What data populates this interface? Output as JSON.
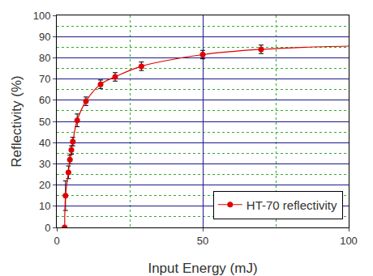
{
  "chart_data": {
    "type": "line",
    "x_label": "Input Energy (mJ)",
    "y_label": "Reflectivity (%)",
    "xlim": [
      0,
      100
    ],
    "xticks": [
      0,
      50,
      100
    ],
    "ylim": [
      0,
      100
    ],
    "yticks": [
      0,
      10,
      20,
      30,
      40,
      50,
      60,
      70,
      80,
      90,
      100
    ],
    "grid": true,
    "legend": "lower right",
    "series": [
      {
        "name": "HT-70 reflectivity",
        "color": "#e00000",
        "marker": "circle",
        "line_style": "solid",
        "x": [
          2.7,
          3,
          4,
          4.5,
          5,
          5.5,
          7,
          10,
          15,
          20,
          29,
          50,
          70
        ],
        "values": [
          0,
          15,
          26,
          32,
          36.5,
          40.5,
          50.5,
          59.5,
          67.5,
          71,
          76,
          81.5,
          84
        ],
        "errors": [
          0,
          7,
          3,
          2,
          2,
          2,
          3,
          2,
          2,
          2,
          2,
          2,
          2
        ]
      },
      {
        "color": "#e00000",
        "marker": "none",
        "line_style": "solid",
        "x": [
          70,
          85,
          100
        ],
        "values": [
          84,
          85,
          85.5
        ]
      }
    ]
  }
}
